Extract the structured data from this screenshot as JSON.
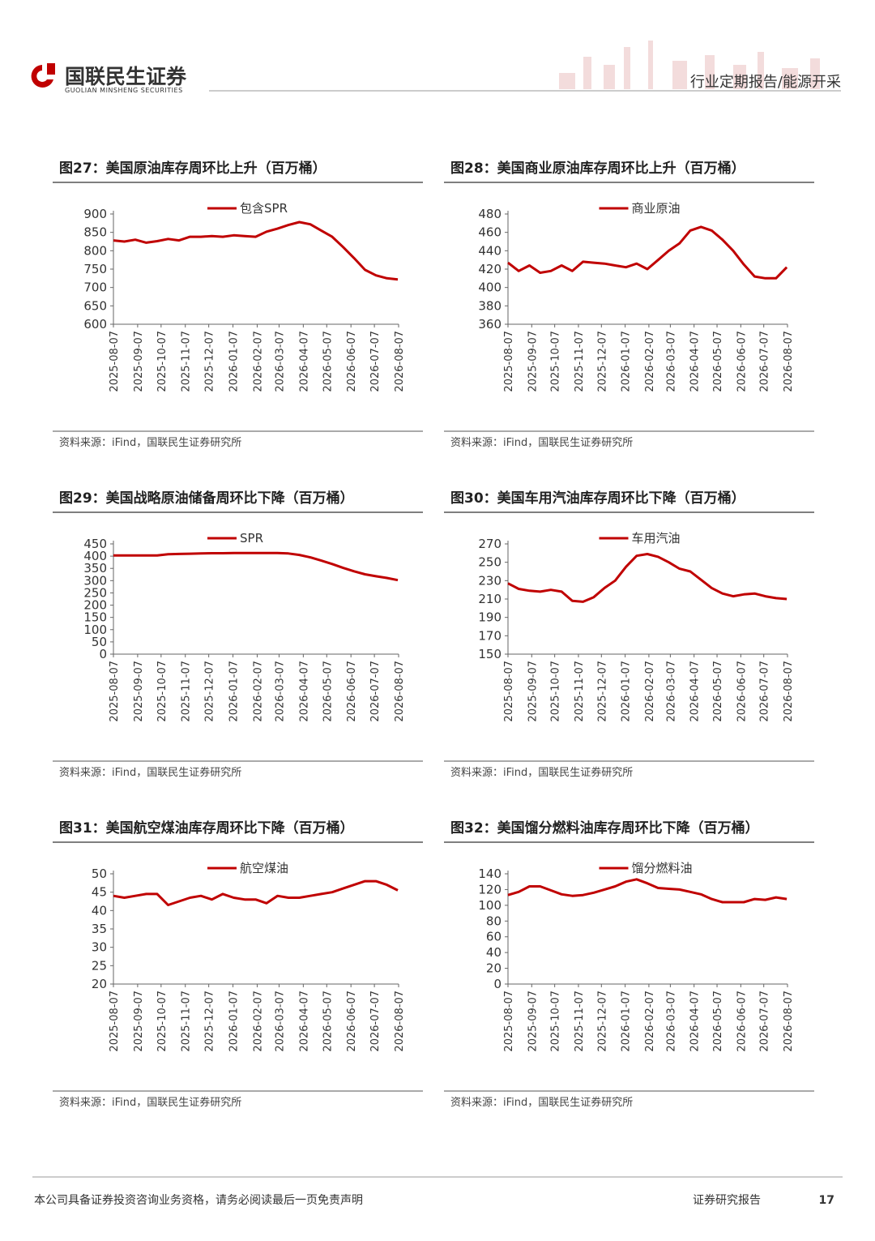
{
  "header": {
    "logo_cn": "国联民生证券",
    "logo_en": "GUOLIAN MINSHENG SECURITIES",
    "section": "行业定期报告/能源开采"
  },
  "chart_data": [
    {
      "type": "line",
      "title": "图27：美国原油库存周环比上升（百万桶）",
      "source": "资料来源：iFind，国联民生证券研究所",
      "x": [
        "2025-08-07",
        "2025-08-21",
        "2025-09-04",
        "2025-09-18",
        "2025-10-02",
        "2025-10-16",
        "2025-10-30",
        "2025-11-13",
        "2025-11-27",
        "2025-12-11",
        "2025-12-25",
        "2026-01-08",
        "2026-01-22",
        "2026-02-05",
        "2026-02-19",
        "2026-03-05",
        "2026-03-19",
        "2026-04-02",
        "2026-04-16",
        "2026-04-30",
        "2026-05-14",
        "2026-05-28",
        "2026-06-11",
        "2026-06-25",
        "2026-07-09",
        "2026-07-23",
        "2026-08-06"
      ],
      "series": [
        {
          "name": "包含SPR",
          "color": "#c00000",
          "values": [
            828,
            825,
            830,
            822,
            826,
            832,
            828,
            838,
            838,
            840,
            838,
            842,
            840,
            838,
            852,
            860,
            870,
            878,
            872,
            855,
            838,
            810,
            780,
            748,
            733,
            725,
            722
          ]
        }
      ],
      "ylim": [
        600,
        900
      ],
      "yticks": [
        600,
        650,
        700,
        750,
        800,
        850,
        900
      ],
      "xlim": [
        "2025-08-07",
        "2026-08-07"
      ],
      "xticks": [
        "2025-08-07",
        "2025-09-07",
        "2025-10-07",
        "2025-11-07",
        "2025-12-07",
        "2026-01-07",
        "2026-02-07",
        "2026-03-07",
        "2026-04-07",
        "2026-05-07",
        "2026-06-07",
        "2026-07-07",
        "2026-08-07"
      ]
    },
    {
      "type": "line",
      "title": "图28：美国商业原油库存周环比上升（百万桶）",
      "source": "资料来源：iFind，国联民生证券研究所",
      "x": [
        "2025-08-07",
        "2025-08-21",
        "2025-09-04",
        "2025-09-18",
        "2025-10-02",
        "2025-10-16",
        "2025-10-30",
        "2025-11-13",
        "2025-11-27",
        "2025-12-11",
        "2025-12-25",
        "2026-01-08",
        "2026-01-22",
        "2026-02-05",
        "2026-02-19",
        "2026-03-05",
        "2026-03-19",
        "2026-04-02",
        "2026-04-16",
        "2026-04-30",
        "2026-05-14",
        "2026-05-28",
        "2026-06-11",
        "2026-06-25",
        "2026-07-09",
        "2026-07-23",
        "2026-08-06"
      ],
      "series": [
        {
          "name": "商业原油",
          "color": "#c00000",
          "values": [
            427,
            418,
            424,
            416,
            418,
            424,
            418,
            428,
            427,
            426,
            424,
            422,
            426,
            420,
            430,
            440,
            448,
            462,
            466,
            462,
            452,
            440,
            425,
            412,
            410,
            410,
            422
          ]
        }
      ],
      "ylim": [
        360,
        480
      ],
      "yticks": [
        360,
        380,
        400,
        420,
        440,
        460,
        480
      ],
      "xlim": [
        "2025-08-07",
        "2026-08-07"
      ],
      "xticks": [
        "2025-08-07",
        "2025-09-07",
        "2025-10-07",
        "2025-11-07",
        "2025-12-07",
        "2026-01-07",
        "2026-02-07",
        "2026-03-07",
        "2026-04-07",
        "2026-05-07",
        "2026-06-07",
        "2026-07-07",
        "2026-08-07"
      ]
    },
    {
      "type": "line",
      "title": "图29：美国战略原油储备周环比下降（百万桶）",
      "source": "资料来源：iFind，国联民生证券研究所",
      "x": [
        "2025-08-07",
        "2025-08-21",
        "2025-09-04",
        "2025-09-18",
        "2025-10-02",
        "2025-10-16",
        "2025-10-30",
        "2025-11-13",
        "2025-11-27",
        "2025-12-11",
        "2025-12-25",
        "2026-01-08",
        "2026-01-22",
        "2026-02-05",
        "2026-02-19",
        "2026-03-05",
        "2026-03-19",
        "2026-04-02",
        "2026-04-16",
        "2026-04-30",
        "2026-05-14",
        "2026-05-28",
        "2026-06-11",
        "2026-06-25",
        "2026-07-09",
        "2026-07-23",
        "2026-08-06"
      ],
      "series": [
        {
          "name": "SPR",
          "color": "#c00000",
          "values": [
            403,
            403,
            403,
            403,
            403,
            408,
            409,
            410,
            411,
            412,
            412,
            413,
            413,
            413,
            413,
            413,
            411,
            405,
            395,
            382,
            368,
            352,
            338,
            326,
            318,
            311,
            302
          ]
        }
      ],
      "ylim": [
        0,
        450
      ],
      "yticks": [
        0,
        50,
        100,
        150,
        200,
        250,
        300,
        350,
        400,
        450
      ],
      "xlim": [
        "2025-08-07",
        "2026-08-07"
      ],
      "xticks": [
        "2025-08-07",
        "2025-09-07",
        "2025-10-07",
        "2025-11-07",
        "2025-12-07",
        "2026-01-07",
        "2026-02-07",
        "2026-03-07",
        "2026-04-07",
        "2026-05-07",
        "2026-06-07",
        "2026-07-07",
        "2026-08-07"
      ]
    },
    {
      "type": "line",
      "title": "图30：美国车用汽油库存周环比下降（百万桶）",
      "source": "资料来源：iFind，国联民生证券研究所",
      "x": [
        "2025-08-07",
        "2025-08-21",
        "2025-09-04",
        "2025-09-18",
        "2025-10-02",
        "2025-10-16",
        "2025-10-30",
        "2025-11-13",
        "2025-11-27",
        "2025-12-11",
        "2025-12-25",
        "2026-01-08",
        "2026-01-22",
        "2026-02-05",
        "2026-02-19",
        "2026-03-05",
        "2026-03-19",
        "2026-04-02",
        "2026-04-16",
        "2026-04-30",
        "2026-05-14",
        "2026-05-28",
        "2026-06-11",
        "2026-06-25",
        "2026-07-09",
        "2026-07-23",
        "2026-08-06"
      ],
      "series": [
        {
          "name": "车用汽油",
          "color": "#c00000",
          "values": [
            227,
            221,
            219,
            218,
            220,
            218,
            208,
            207,
            212,
            222,
            230,
            245,
            257,
            259,
            256,
            250,
            243,
            240,
            231,
            222,
            216,
            213,
            215,
            216,
            213,
            211,
            210
          ]
        }
      ],
      "ylim": [
        150,
        270
      ],
      "yticks": [
        150,
        170,
        190,
        210,
        230,
        250,
        270
      ],
      "xlim": [
        "2025-08-07",
        "2026-08-07"
      ],
      "xticks": [
        "2025-08-07",
        "2025-09-07",
        "2025-10-07",
        "2025-11-07",
        "2025-12-07",
        "2026-01-07",
        "2026-02-07",
        "2026-03-07",
        "2026-04-07",
        "2026-05-07",
        "2026-06-07",
        "2026-07-07",
        "2026-08-07"
      ]
    },
    {
      "type": "line",
      "title": "图31：美国航空煤油库存周环比下降（百万桶）",
      "source": "资料来源：iFind，国联民生证券研究所",
      "x": [
        "2025-08-07",
        "2025-08-21",
        "2025-09-04",
        "2025-09-18",
        "2025-10-02",
        "2025-10-16",
        "2025-10-30",
        "2025-11-13",
        "2025-11-27",
        "2025-12-11",
        "2025-12-25",
        "2026-01-08",
        "2026-01-22",
        "2026-02-05",
        "2026-02-19",
        "2026-03-05",
        "2026-03-19",
        "2026-04-02",
        "2026-04-16",
        "2026-04-30",
        "2026-05-14",
        "2026-05-28",
        "2026-06-11",
        "2026-06-25",
        "2026-07-09",
        "2026-07-23",
        "2026-08-06"
      ],
      "series": [
        {
          "name": "航空煤油",
          "color": "#c00000",
          "values": [
            44,
            43.5,
            44,
            44.5,
            44.5,
            41.5,
            42.5,
            43.5,
            44,
            43,
            44.5,
            43.5,
            43,
            43,
            42,
            44,
            43.5,
            43.5,
            44,
            44.5,
            45,
            46,
            47,
            48,
            48,
            47,
            45.5
          ]
        }
      ],
      "ylim": [
        20,
        50
      ],
      "yticks": [
        20,
        25,
        30,
        35,
        40,
        45,
        50
      ],
      "xlim": [
        "2025-08-07",
        "2026-08-07"
      ],
      "xticks": [
        "2025-08-07",
        "2025-09-07",
        "2025-10-07",
        "2025-11-07",
        "2025-12-07",
        "2026-01-07",
        "2026-02-07",
        "2026-03-07",
        "2026-04-07",
        "2026-05-07",
        "2026-06-07",
        "2026-07-07",
        "2026-08-07"
      ]
    },
    {
      "type": "line",
      "title": "图32：美国馏分燃料油库存周环比下降（百万桶）",
      "source": "资料来源：iFind，国联民生证券研究所",
      "x": [
        "2025-08-07",
        "2025-08-21",
        "2025-09-04",
        "2025-09-18",
        "2025-10-02",
        "2025-10-16",
        "2025-10-30",
        "2025-11-13",
        "2025-11-27",
        "2025-12-11",
        "2025-12-25",
        "2026-01-08",
        "2026-01-22",
        "2026-02-05",
        "2026-02-19",
        "2026-03-05",
        "2026-03-19",
        "2026-04-02",
        "2026-04-16",
        "2026-04-30",
        "2026-05-14",
        "2026-05-28",
        "2026-06-11",
        "2026-06-25",
        "2026-07-09",
        "2026-07-23",
        "2026-08-06"
      ],
      "series": [
        {
          "name": "馏分燃料油",
          "color": "#c00000",
          "values": [
            113,
            117,
            124,
            124,
            119,
            114,
            112,
            113,
            116,
            120,
            124,
            130,
            133,
            128,
            122,
            121,
            120,
            117,
            114,
            108,
            104,
            104,
            104,
            108,
            107,
            110,
            108
          ]
        }
      ],
      "ylim": [
        0,
        140
      ],
      "yticks": [
        0,
        20,
        40,
        60,
        80,
        100,
        120,
        140
      ],
      "xlim": [
        "2025-08-07",
        "2026-08-07"
      ],
      "xticks": [
        "2025-08-07",
        "2025-09-07",
        "2025-10-07",
        "2025-11-07",
        "2025-12-07",
        "2026-01-07",
        "2026-02-07",
        "2026-03-07",
        "2026-04-07",
        "2026-05-07",
        "2026-06-07",
        "2026-07-07",
        "2026-08-07"
      ]
    }
  ],
  "footer": {
    "disclaimer": "本公司具备证券投资咨询业务资格，请务必阅读最后一页免责声明",
    "label": "证券研究报告",
    "page": "17"
  }
}
